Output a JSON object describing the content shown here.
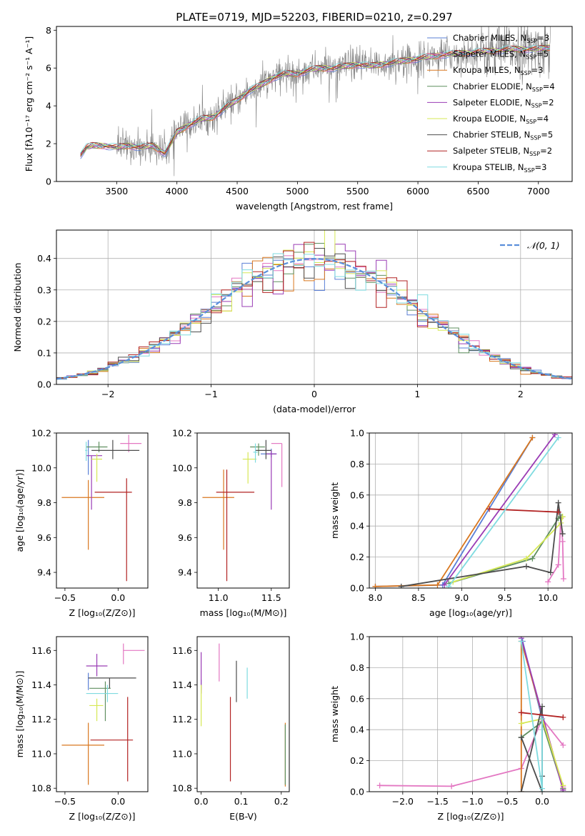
{
  "figure": {
    "title": "PLATE=0719, MJD=52203, FIBERID=0210, z=0.297"
  },
  "colors": {
    "chabrier_miles": "#5a7fd6",
    "salpeter_miles": "#e377c2",
    "kroupa_miles": "#d9771f",
    "chabrier_elodie": "#5f8f5f",
    "salpeter_elodie": "#9a3cb5",
    "kroupa_elodie": "#d6e855",
    "chabrier_stelib": "#4d4d4d",
    "salpeter_stelib": "#b22222",
    "kroupa_stelib": "#7fdbe0",
    "data": "#808080",
    "normal": "#5a8fdb"
  },
  "chart_data": [
    {
      "id": "spectrum",
      "type": "line",
      "title": "PLATE=0719, MJD=52203, FIBERID=0210, z=0.297",
      "xlabel": "wavelength [Angstrom, rest frame]",
      "ylabel": "Flux [fλ10⁻¹⁷ erg cm⁻² s⁻¹ A⁻¹]",
      "xlim": [
        3000,
        7280
      ],
      "ylim": [
        0,
        8.2
      ],
      "xticks": [
        3500,
        4000,
        4500,
        5000,
        5500,
        6000,
        6500,
        7000
      ],
      "yticks": [
        0,
        2,
        4,
        6,
        8
      ],
      "grid": false,
      "legend_position": "top-right",
      "legend": [
        "Chabrier MILES, N_SSP=3",
        "Salpeter MILES, N_SSP=5",
        "Kroupa MILES, N_SSP=3",
        "Chabrier ELODIE, N_SSP=4",
        "Salpeter ELODIE, N_SSP=2",
        "Kroupa ELODIE, N_SSP=4",
        "Chabrier STELIB, N_SSP=5",
        "Salpeter STELIB, N_SSP=2",
        "Kroupa STELIB, N_SSP=3"
      ],
      "model_curve": {
        "x": [
          3200,
          3250,
          3300,
          3400,
          3500,
          3600,
          3700,
          3800,
          3900,
          3950,
          4000,
          4100,
          4200,
          4300,
          4400,
          4500,
          4600,
          4700,
          4800,
          4900,
          5000,
          5100,
          5200,
          5300,
          5400,
          5500,
          5600,
          5700,
          5800,
          5900,
          6000,
          6200,
          6400,
          6600,
          6800,
          7000,
          7100
        ],
        "y": [
          1.4,
          1.8,
          1.9,
          1.9,
          1.8,
          1.9,
          1.8,
          1.9,
          1.5,
          2.0,
          2.6,
          3.0,
          3.3,
          3.4,
          3.9,
          4.3,
          4.8,
          5.1,
          5.5,
          5.7,
          5.7,
          5.9,
          6.0,
          6.0,
          6.1,
          6.2,
          6.1,
          6.2,
          6.3,
          6.4,
          6.5,
          6.7,
          6.8,
          6.9,
          7.0,
          7.0,
          7.1
        ]
      }
    },
    {
      "id": "residuals",
      "type": "histogram",
      "xlabel": "(data-model)/error",
      "ylabel": "Normed distribution",
      "xlim": [
        -2.5,
        2.5
      ],
      "ylim": [
        0,
        0.49
      ],
      "xticks": [
        -2,
        -1,
        0,
        1,
        2
      ],
      "yticks": [
        0.0,
        0.1,
        0.2,
        0.3,
        0.4
      ],
      "grid": true,
      "legend": [
        "𝒩(0, 1)"
      ],
      "legend_position": "top-right",
      "normal_curve": "N(0,1)"
    },
    {
      "id": "age_vs_Z",
      "type": "errorbar",
      "xlabel": "Z [log₁₀(Z/Z⊙)]",
      "ylabel": "age  [log₁₀(age/yr)]",
      "xlim": [
        -0.58,
        0.28
      ],
      "ylim": [
        9.31,
        10.2
      ],
      "xticks": [
        -0.5,
        0.0
      ],
      "yticks": [
        9.4,
        9.6,
        9.8,
        10.0,
        10.2
      ],
      "points": [
        {
          "model": "chabrier_miles",
          "x": -0.28,
          "y": 10.06,
          "xerr": [
            0.0,
            0.0
          ],
          "yerr": [
            0.1,
            0.1
          ]
        },
        {
          "model": "salpeter_miles",
          "x": 0.1,
          "y": 10.14,
          "xerr": [
            0.08,
            0.12
          ],
          "yerr": [
            0.05,
            0.05
          ]
        },
        {
          "model": "kroupa_miles",
          "x": -0.28,
          "y": 9.83,
          "xerr": [
            0.25,
            0.15
          ],
          "yerr": [
            0.3,
            0.1
          ]
        },
        {
          "model": "chabrier_elodie",
          "x": -0.18,
          "y": 10.12,
          "xerr": [
            0.12,
            0.08
          ],
          "yerr": [
            0.03,
            0.03
          ]
        },
        {
          "model": "salpeter_elodie",
          "x": -0.25,
          "y": 10.07,
          "xerr": [
            0.05,
            0.1
          ],
          "yerr": [
            0.31,
            0.0
          ]
        },
        {
          "model": "kroupa_elodie",
          "x": -0.2,
          "y": 10.05,
          "xerr": [
            0.05,
            0.05
          ],
          "yerr": [
            0.13,
            0.03
          ]
        },
        {
          "model": "chabrier_stelib",
          "x": -0.05,
          "y": 10.1,
          "xerr": [
            0.2,
            0.25
          ],
          "yerr": [
            0.05,
            0.06
          ]
        },
        {
          "model": "salpeter_stelib",
          "x": 0.08,
          "y": 9.86,
          "xerr": [
            0.3,
            0.05
          ],
          "yerr": [
            0.51,
            0.08
          ]
        },
        {
          "model": "kroupa_stelib",
          "x": -0.3,
          "y": 10.1,
          "xerr": [
            0.01,
            0.01
          ],
          "yerr": [
            0.06,
            0.05
          ]
        }
      ]
    },
    {
      "id": "age_vs_mass",
      "type": "errorbar",
      "xlabel": "mass [log₁₀(M/M⊙)]",
      "ylabel": "",
      "xlim": [
        10.8,
        11.67
      ],
      "ylim": [
        9.31,
        10.2
      ],
      "xticks": [
        11.0,
        11.5
      ],
      "yticks": [
        9.4,
        9.6,
        9.8,
        10.0,
        10.2
      ],
      "points": [
        {
          "model": "chabrier_miles",
          "x": 11.5,
          "y": 10.08,
          "xerr": [
            0.1,
            0.05
          ],
          "yerr": [
            0.02,
            0.03
          ]
        },
        {
          "model": "salpeter_miles",
          "x": 11.6,
          "y": 10.14,
          "xerr": [
            0.1,
            0.0
          ],
          "yerr": [
            0.25,
            0.0
          ]
        },
        {
          "model": "kroupa_miles",
          "x": 11.05,
          "y": 9.83,
          "xerr": [
            0.2,
            0.1
          ],
          "yerr": [
            0.3,
            0.16
          ]
        },
        {
          "model": "chabrier_elodie",
          "x": 11.38,
          "y": 10.12,
          "xerr": [
            0.08,
            0.06
          ],
          "yerr": [
            0.05,
            0.02
          ]
        },
        {
          "model": "salpeter_elodie",
          "x": 11.5,
          "y": 10.08,
          "xerr": [
            0.05,
            0.05
          ],
          "yerr": [
            0.32,
            0.02
          ]
        },
        {
          "model": "kroupa_elodie",
          "x": 11.28,
          "y": 10.05,
          "xerr": [
            0.05,
            0.08
          ],
          "yerr": [
            0.14,
            0.04
          ]
        },
        {
          "model": "chabrier_stelib",
          "x": 11.45,
          "y": 10.1,
          "xerr": [
            0.1,
            0.05
          ],
          "yerr": [
            0.05,
            0.06
          ]
        },
        {
          "model": "salpeter_stelib",
          "x": 11.08,
          "y": 9.86,
          "xerr": [
            0.1,
            0.26
          ],
          "yerr": [
            0.51,
            0.13
          ]
        },
        {
          "model": "kroupa_stelib",
          "x": 11.35,
          "y": 10.09,
          "xerr": [
            0.02,
            0.02
          ],
          "yerr": [
            0.06,
            0.05
          ]
        }
      ]
    },
    {
      "id": "weight_vs_age",
      "type": "line",
      "xlabel": "age  [log₁₀(age/yr)]",
      "ylabel": "mass weight",
      "xlim": [
        7.93,
        10.28
      ],
      "ylim": [
        0.0,
        1.0
      ],
      "xticks": [
        8.0,
        8.5,
        9.0,
        9.5,
        10.0
      ],
      "yticks": [
        0.0,
        0.2,
        0.4,
        0.6,
        0.8,
        1.0
      ],
      "grid": true,
      "series": [
        {
          "model": "chabrier_miles",
          "x": [
            8.0,
            8.78,
            9.82
          ],
          "y": [
            0.01,
            0.02,
            0.97
          ]
        },
        {
          "model": "salpeter_miles",
          "x": [
            10.0,
            10.12,
            10.15,
            10.17,
            10.18
          ],
          "y": [
            0.04,
            0.15,
            0.45,
            0.3,
            0.06
          ]
        },
        {
          "model": "kroupa_miles",
          "x": [
            8.0,
            8.72,
            9.82
          ],
          "y": [
            0.01,
            0.02,
            0.97
          ]
        },
        {
          "model": "chabrier_elodie",
          "x": [
            8.85,
            9.82,
            10.12,
            10.16
          ],
          "y": [
            0.03,
            0.19,
            0.45,
            0.46
          ]
        },
        {
          "model": "salpeter_elodie",
          "x": [
            8.8,
            10.08
          ],
          "y": [
            0.02,
            0.99
          ]
        },
        {
          "model": "kroupa_elodie",
          "x": [
            8.9,
            9.75,
            10.15,
            10.17
          ],
          "y": [
            0.04,
            0.19,
            0.42,
            0.46
          ]
        },
        {
          "model": "chabrier_stelib",
          "x": [
            8.3,
            9.75,
            10.03,
            10.12,
            10.17
          ],
          "y": [
            0.01,
            0.14,
            0.1,
            0.55,
            0.35
          ]
        },
        {
          "model": "salpeter_stelib",
          "x": [
            9.32,
            10.12
          ],
          "y": [
            0.51,
            0.49
          ]
        },
        {
          "model": "kroupa_stelib",
          "x": [
            8.85,
            10.12
          ],
          "y": [
            0.01,
            0.97
          ]
        }
      ]
    },
    {
      "id": "mass_vs_Z",
      "type": "errorbar",
      "xlabel": "Z [log₁₀(Z/Z⊙)]",
      "ylabel": "mass [log₁₀(M/M⊙)]",
      "xlim": [
        -0.58,
        0.28
      ],
      "ylim": [
        10.78,
        11.68
      ],
      "xticks": [
        -0.5,
        0.0
      ],
      "yticks": [
        10.8,
        11.0,
        11.2,
        11.4,
        11.6
      ],
      "points": [
        {
          "model": "chabrier_miles",
          "x": -0.28,
          "y": 11.42,
          "xerr": [
            0.0,
            0.0
          ],
          "yerr": [
            0.05,
            0.05
          ]
        },
        {
          "model": "salpeter_miles",
          "x": 0.05,
          "y": 11.6,
          "xerr": [
            0.0,
            0.2
          ],
          "yerr": [
            0.08,
            0.04
          ]
        },
        {
          "model": "kroupa_miles",
          "x": -0.28,
          "y": 11.05,
          "xerr": [
            0.25,
            0.15
          ],
          "yerr": [
            0.23,
            0.13
          ]
        },
        {
          "model": "chabrier_elodie",
          "x": -0.12,
          "y": 11.38,
          "xerr": [
            0.15,
            0.05
          ],
          "yerr": [
            0.19,
            0.04
          ]
        },
        {
          "model": "salpeter_elodie",
          "x": -0.2,
          "y": 11.51,
          "xerr": [
            0.1,
            0.1
          ],
          "yerr": [
            0.06,
            0.07
          ]
        },
        {
          "model": "kroupa_elodie",
          "x": -0.2,
          "y": 11.28,
          "xerr": [
            0.07,
            0.06
          ],
          "yerr": [
            0.09,
            0.04
          ]
        },
        {
          "model": "chabrier_stelib",
          "x": -0.08,
          "y": 11.44,
          "xerr": [
            0.2,
            0.25
          ],
          "yerr": [
            0.06,
            0.0
          ]
        },
        {
          "model": "salpeter_stelib",
          "x": 0.09,
          "y": 11.08,
          "xerr": [
            0.35,
            0.05
          ],
          "yerr": [
            0.24,
            0.25
          ]
        },
        {
          "model": "kroupa_stelib",
          "x": -0.1,
          "y": 11.35,
          "xerr": [
            0.2,
            0.1
          ],
          "yerr": [
            0.05,
            0.05
          ]
        }
      ]
    },
    {
      "id": "mass_vs_ebv",
      "type": "errorbar",
      "xlabel": "E(B-V)",
      "ylabel": "",
      "xlim": [
        -0.01,
        0.22
      ],
      "ylim": [
        10.78,
        11.68
      ],
      "xticks": [
        0.0,
        0.1,
        0.2
      ],
      "yticks": [
        10.8,
        11.0,
        11.2,
        11.4,
        11.6
      ],
      "points": [
        {
          "model": "chabrier_miles",
          "x": 0.0,
          "y": 11.4,
          "xerr": [
            0.0,
            0.0
          ],
          "yerr": [
            0.03,
            0.03
          ]
        },
        {
          "model": "salpeter_miles",
          "x": 0.045,
          "y": 11.52,
          "xerr": [
            0.0,
            0.0
          ],
          "yerr": [
            0.1,
            0.12
          ]
        },
        {
          "model": "kroupa_miles",
          "x": 0.21,
          "y": 11.0,
          "xerr": [
            0.0,
            0.0
          ],
          "yerr": [
            0.19,
            0.18
          ]
        },
        {
          "model": "chabrier_elodie",
          "x": 0.21,
          "y": 11.0,
          "xerr": [
            0.0,
            0.0
          ],
          "yerr": [
            0.18,
            0.17
          ]
        },
        {
          "model": "salpeter_elodie",
          "x": 0.0,
          "y": 11.45,
          "xerr": [
            0.0,
            0.0
          ],
          "yerr": [
            0.1,
            0.14
          ]
        },
        {
          "model": "kroupa_elodie",
          "x": 0.0,
          "y": 11.28,
          "xerr": [
            0.0,
            0.0
          ],
          "yerr": [
            0.12,
            0.12
          ]
        },
        {
          "model": "chabrier_stelib",
          "x": 0.088,
          "y": 11.42,
          "xerr": [
            0.0,
            0.0
          ],
          "yerr": [
            0.12,
            0.12
          ]
        },
        {
          "model": "salpeter_stelib",
          "x": 0.073,
          "y": 11.08,
          "xerr": [
            0.0,
            0.0
          ],
          "yerr": [
            0.24,
            0.25
          ]
        },
        {
          "model": "kroupa_stelib",
          "x": 0.115,
          "y": 11.41,
          "xerr": [
            0.0,
            0.0
          ],
          "yerr": [
            0.09,
            0.09
          ]
        }
      ]
    },
    {
      "id": "weight_vs_Z",
      "type": "line",
      "xlabel": "Z [log₁₀(Z/Z⊙)]",
      "ylabel": "mass weight",
      "xlim": [
        -2.48,
        0.43
      ],
      "ylim": [
        0.0,
        1.0
      ],
      "xticks": [
        -2.0,
        -1.5,
        -1.0,
        -0.5,
        0.0
      ],
      "yticks": [
        0.0,
        0.2,
        0.4,
        0.6,
        0.8,
        1.0
      ],
      "grid": true,
      "series": [
        {
          "model": "chabrier_miles",
          "x": [
            -0.28,
            0.0,
            0.3
          ],
          "y": [
            0.97,
            0.47,
            0.02
          ]
        },
        {
          "model": "salpeter_miles",
          "x": [
            -2.33,
            -1.3,
            -0.3,
            0.0,
            0.3,
            0.0,
            0.3
          ],
          "y": [
            0.04,
            0.035,
            0.15,
            0.47,
            0.3,
            0.47,
            0.03
          ]
        },
        {
          "model": "kroupa_miles",
          "x": [
            -0.3,
            -0.3,
            0.3
          ],
          "y": [
            0.0,
            0.97,
            0.02
          ]
        },
        {
          "model": "chabrier_elodie",
          "x": [
            -0.3,
            0.0,
            0.3
          ],
          "y": [
            0.35,
            0.45,
            0.02
          ]
        },
        {
          "model": "salpeter_elodie",
          "x": [
            -0.3,
            0.3
          ],
          "y": [
            0.99,
            0.01
          ]
        },
        {
          "model": "kroupa_elodie",
          "x": [
            -0.3,
            0.0,
            0.3
          ],
          "y": [
            0.44,
            0.47,
            0.04
          ]
        },
        {
          "model": "chabrier_stelib",
          "x": [
            -0.3,
            0.0,
            0.0,
            0.0,
            -0.3
          ],
          "y": [
            0.0,
            0.55,
            0.1,
            0.0,
            0.35
          ]
        },
        {
          "model": "salpeter_stelib",
          "x": [
            -0.3,
            0.3
          ],
          "y": [
            0.51,
            0.48
          ]
        },
        {
          "model": "kroupa_stelib",
          "x": [
            -0.3,
            0.0,
            0.0
          ],
          "y": [
            0.97,
            0.02,
            0.47
          ]
        }
      ]
    }
  ]
}
